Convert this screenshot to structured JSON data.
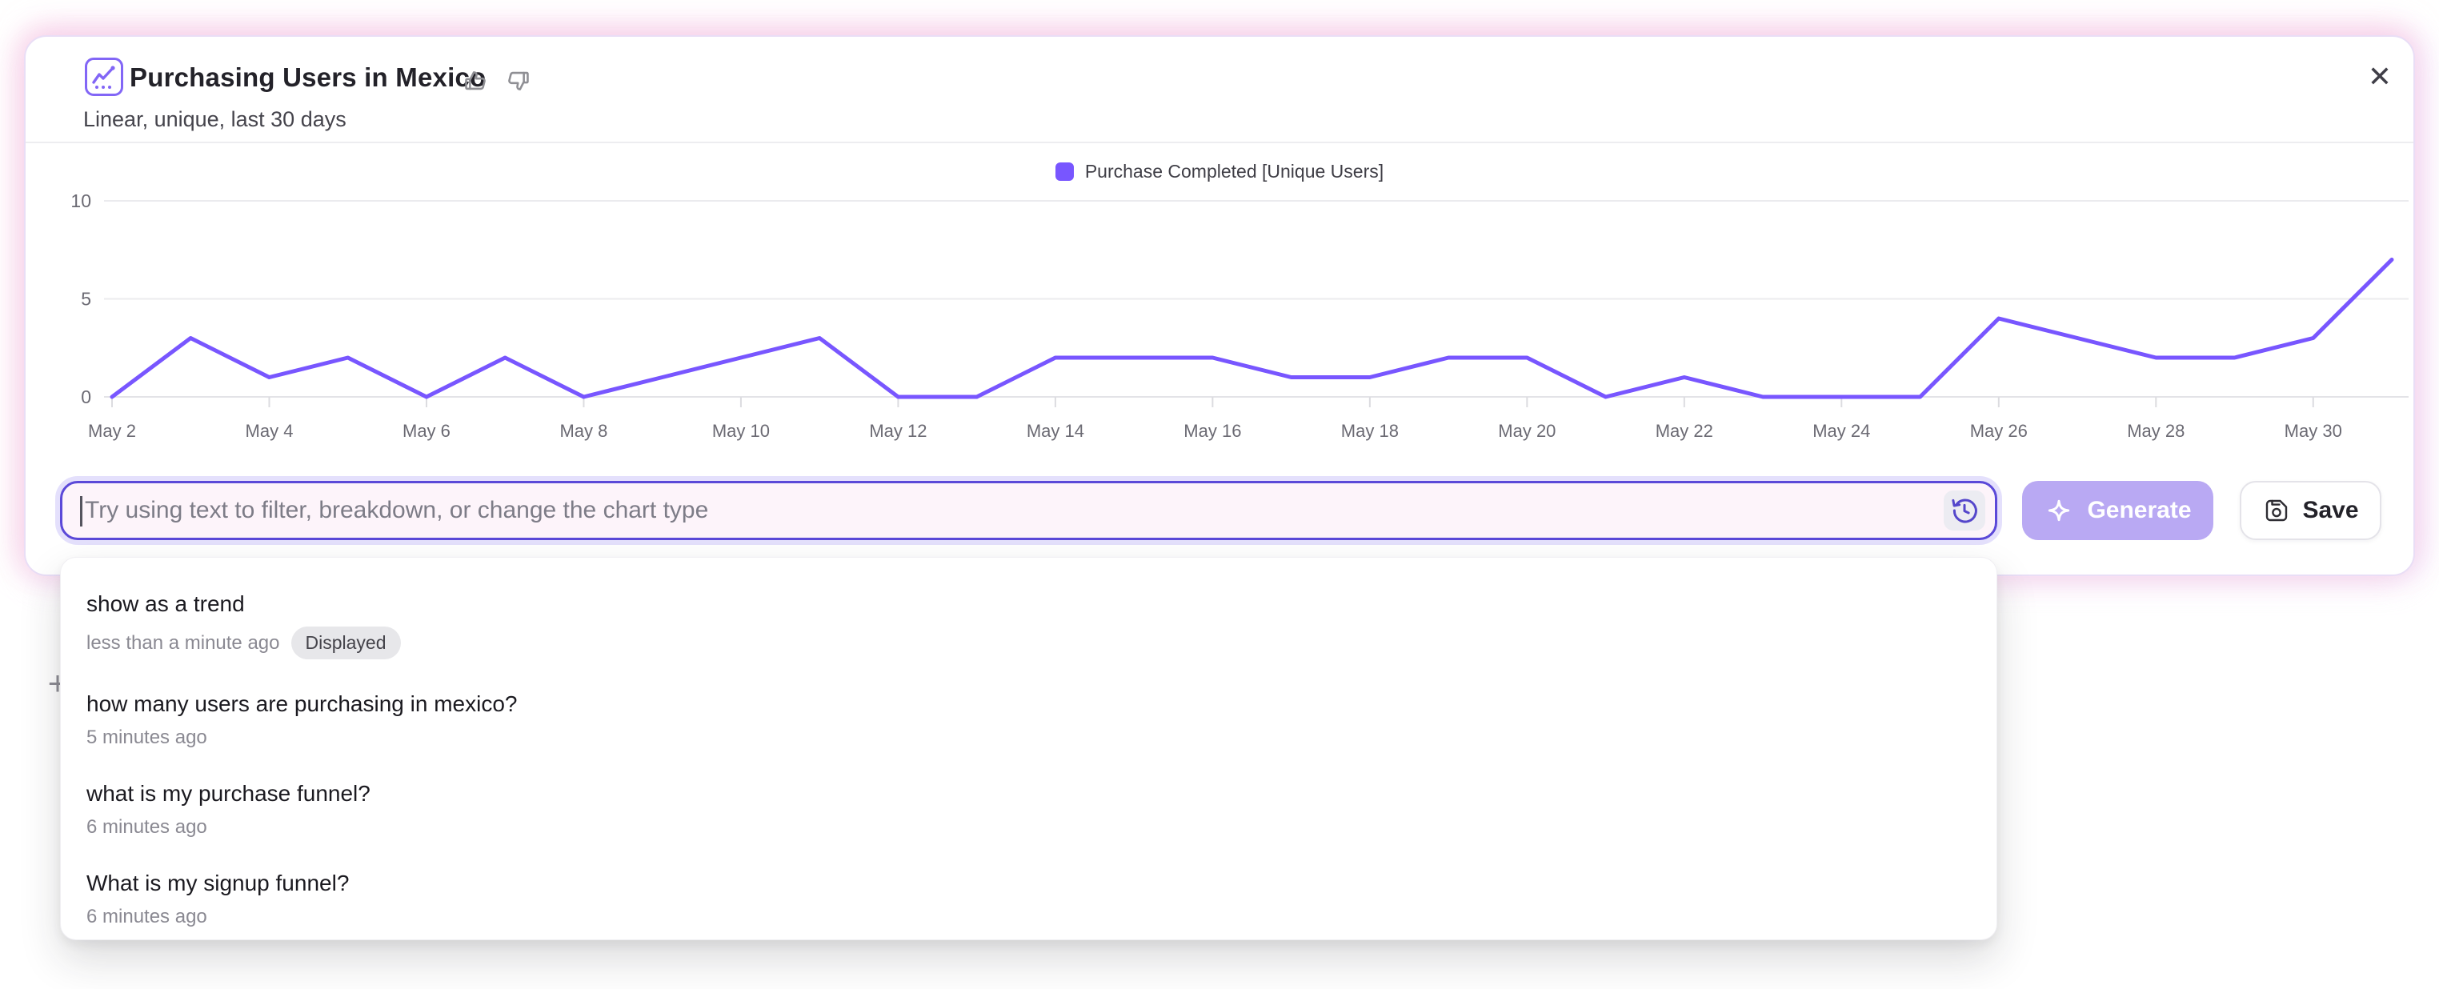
{
  "header": {
    "title": "Purchasing Users in Mexico",
    "subtitle": "Linear, unique, last 30 days"
  },
  "icons": {
    "close": "✕",
    "plus": "+"
  },
  "legend": {
    "label": "Purchase Completed [Unique Users]",
    "swatch_color": "#7856FF"
  },
  "chart_data": {
    "type": "line",
    "title": "Purchasing Users in Mexico",
    "x": [
      "May 2",
      "May 3",
      "May 4",
      "May 5",
      "May 6",
      "May 7",
      "May 8",
      "May 9",
      "May 10",
      "May 11",
      "May 12",
      "May 13",
      "May 14",
      "May 15",
      "May 16",
      "May 17",
      "May 18",
      "May 19",
      "May 20",
      "May 21",
      "May 22",
      "May 23",
      "May 24",
      "May 25",
      "May 26",
      "May 27",
      "May 28",
      "May 29",
      "May 30",
      "May 31"
    ],
    "x_tick_labels": [
      "May 2",
      "May 4",
      "May 6",
      "May 8",
      "May 10",
      "May 12",
      "May 14",
      "May 16",
      "May 18",
      "May 20",
      "May 22",
      "May 24",
      "May 26",
      "May 28",
      "May 30"
    ],
    "series": [
      {
        "name": "Purchase Completed [Unique Users]",
        "color": "#7856FF",
        "values": [
          0,
          3,
          1,
          2,
          0,
          2,
          0,
          1,
          2,
          3,
          0,
          0,
          2,
          2,
          2,
          1,
          1,
          2,
          2,
          0,
          1,
          0,
          0,
          0,
          4,
          3,
          2,
          2,
          3,
          7
        ]
      }
    ],
    "y_ticks": [
      0,
      5,
      10
    ],
    "ylim": [
      0,
      10
    ],
    "grid": true,
    "legend_position": "top-center",
    "axis_text_color": "#6b6a73",
    "grid_color": "#ebebee"
  },
  "prompt_bar": {
    "placeholder": "Try using text to filter, breakdown, or change the chart type",
    "value": "",
    "generate_label": "Generate",
    "save_label": "Save"
  },
  "history": {
    "items": [
      {
        "query": "show as a trend",
        "time": "less than a minute ago",
        "badge": "Displayed"
      },
      {
        "query": "how many users are purchasing in mexico?",
        "time": "5 minutes ago"
      },
      {
        "query": "what is my purchase funnel?",
        "time": "6 minutes ago"
      },
      {
        "query": "What is my signup funnel?",
        "time": "6 minutes ago"
      }
    ]
  }
}
